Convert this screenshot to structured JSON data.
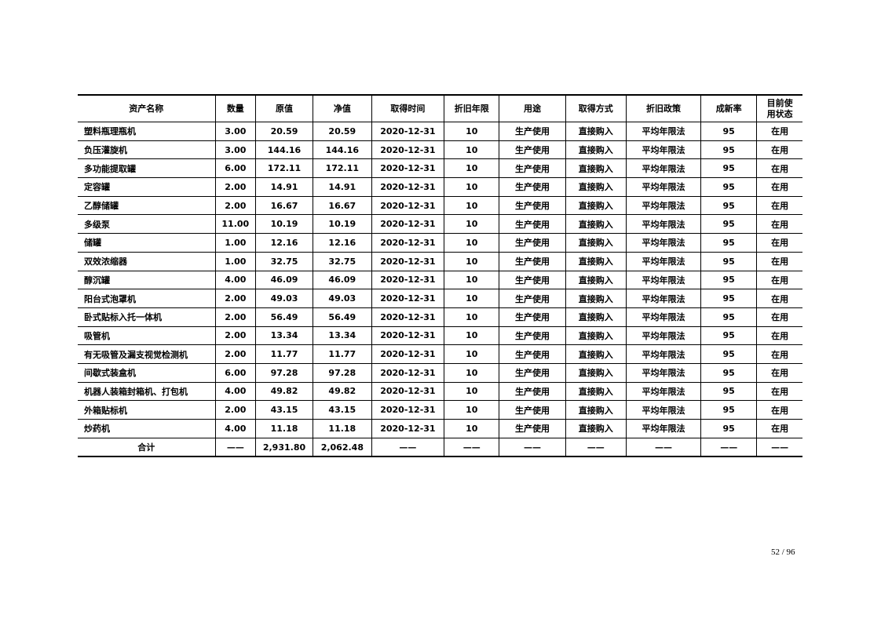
{
  "table": {
    "headers": [
      "资产名称",
      "数量",
      "原值",
      "净值",
      "取得时间",
      "折旧年限",
      "用途",
      "取得方式",
      "折旧政策",
      "成新率",
      "目前使\n用状态"
    ],
    "rows": [
      [
        "塑料瓶理瓶机",
        "3.00",
        "20.59",
        "20.59",
        "2020-12-31",
        "10",
        "生产使用",
        "直接购入",
        "平均年限法",
        "95",
        "在用"
      ],
      [
        "负压灌旋机",
        "3.00",
        "144.16",
        "144.16",
        "2020-12-31",
        "10",
        "生产使用",
        "直接购入",
        "平均年限法",
        "95",
        "在用"
      ],
      [
        "多功能提取罐",
        "6.00",
        "172.11",
        "172.11",
        "2020-12-31",
        "10",
        "生产使用",
        "直接购入",
        "平均年限法",
        "95",
        "在用"
      ],
      [
        "定容罐",
        "2.00",
        "14.91",
        "14.91",
        "2020-12-31",
        "10",
        "生产使用",
        "直接购入",
        "平均年限法",
        "95",
        "在用"
      ],
      [
        "乙醇储罐",
        "2.00",
        "16.67",
        "16.67",
        "2020-12-31",
        "10",
        "生产使用",
        "直接购入",
        "平均年限法",
        "95",
        "在用"
      ],
      [
        "多级泵",
        "11.00",
        "10.19",
        "10.19",
        "2020-12-31",
        "10",
        "生产使用",
        "直接购入",
        "平均年限法",
        "95",
        "在用"
      ],
      [
        "储罐",
        "1.00",
        "12.16",
        "12.16",
        "2020-12-31",
        "10",
        "生产使用",
        "直接购入",
        "平均年限法",
        "95",
        "在用"
      ],
      [
        "双效浓缩器",
        "1.00",
        "32.75",
        "32.75",
        "2020-12-31",
        "10",
        "生产使用",
        "直接购入",
        "平均年限法",
        "95",
        "在用"
      ],
      [
        "醇沉罐",
        "4.00",
        "46.09",
        "46.09",
        "2020-12-31",
        "10",
        "生产使用",
        "直接购入",
        "平均年限法",
        "95",
        "在用"
      ],
      [
        "阳台式泡罩机",
        "2.00",
        "49.03",
        "49.03",
        "2020-12-31",
        "10",
        "生产使用",
        "直接购入",
        "平均年限法",
        "95",
        "在用"
      ],
      [
        "卧式贴标入托一体机",
        "2.00",
        "56.49",
        "56.49",
        "2020-12-31",
        "10",
        "生产使用",
        "直接购入",
        "平均年限法",
        "95",
        "在用"
      ],
      [
        "吸管机",
        "2.00",
        "13.34",
        "13.34",
        "2020-12-31",
        "10",
        "生产使用",
        "直接购入",
        "平均年限法",
        "95",
        "在用"
      ],
      [
        "有无吸管及漏支视觉检测机",
        "2.00",
        "11.77",
        "11.77",
        "2020-12-31",
        "10",
        "生产使用",
        "直接购入",
        "平均年限法",
        "95",
        "在用"
      ],
      [
        "间歇式装盒机",
        "6.00",
        "97.28",
        "97.28",
        "2020-12-31",
        "10",
        "生产使用",
        "直接购入",
        "平均年限法",
        "95",
        "在用"
      ],
      [
        "机器人装箱封箱机、打包机",
        "4.00",
        "49.82",
        "49.82",
        "2020-12-31",
        "10",
        "生产使用",
        "直接购入",
        "平均年限法",
        "95",
        "在用"
      ],
      [
        "外箱贴标机",
        "2.00",
        "43.15",
        "43.15",
        "2020-12-31",
        "10",
        "生产使用",
        "直接购入",
        "平均年限法",
        "95",
        "在用"
      ],
      [
        "炒药机",
        "4.00",
        "11.18",
        "11.18",
        "2020-12-31",
        "10",
        "生产使用",
        "直接购入",
        "平均年限法",
        "95",
        "在用"
      ]
    ],
    "total": [
      "合计",
      "——",
      "2,931.80",
      "2,062.48",
      "——",
      "——",
      "——",
      "——",
      "——",
      "——",
      "——"
    ]
  },
  "page_number": "52 / 96"
}
